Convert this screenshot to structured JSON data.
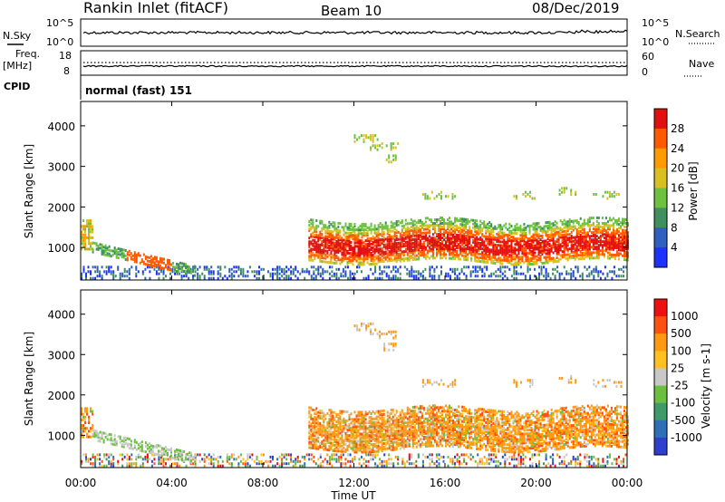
{
  "header": {
    "station": "Rankin Inlet (fitACF)",
    "beam": "Beam 10",
    "date": "08/Dec/2019"
  },
  "top_panels": {
    "nsky_label": "N.Sky",
    "nsky_ticks": [
      "10^5",
      "10^0"
    ],
    "nsearch_label": "N.Search",
    "nsearch_ticks": [
      "10^5",
      "10^0"
    ],
    "freq_label": "Freq.",
    "freq_unit": "[MHz]",
    "freq_ticks": [
      "18",
      "8"
    ],
    "nave_label": "Nave",
    "nave_ticks": [
      "60",
      "0"
    ],
    "cpid_label": "CPID",
    "cpid_value": "normal (fast) 151"
  },
  "colors": {
    "power": [
      "#1e32ff",
      "#2f5fbf",
      "#3f8f5f",
      "#6ec040",
      "#d8c020",
      "#ff9a00",
      "#ff5a00",
      "#e01010"
    ],
    "velocity": [
      "#2e3fd0",
      "#2f6fb8",
      "#3f9a6a",
      "#6cc040",
      "#c8c8c8",
      "#ffc020",
      "#ff9a10",
      "#ff5010",
      "#ee1010"
    ]
  },
  "chart_data": [
    {
      "type": "heatmap",
      "ylabel": "Slant Range [km]",
      "yticks": [
        "1000",
        "2000",
        "3000",
        "4000"
      ],
      "ylim": [
        200,
        4600
      ],
      "colorbar": {
        "label": "Power [dB]",
        "ticks": [
          "4",
          "8",
          "12",
          "16",
          "20",
          "24",
          "28"
        ],
        "range": [
          0,
          32
        ]
      }
    },
    {
      "type": "heatmap",
      "ylabel": "Slant Range [km]",
      "yticks": [
        "1000",
        "2000",
        "3000",
        "4000"
      ],
      "ylim": [
        200,
        4600
      ],
      "xlabel": "Time UT",
      "xticks": [
        "00:00",
        "04:00",
        "08:00",
        "12:00",
        "16:00",
        "20:00",
        "00:00"
      ],
      "colorbar": {
        "label": "Velocity [m s-1]",
        "ticks": [
          "1000",
          "500",
          "100",
          "25",
          "-25",
          "-100",
          "-500",
          "-1000"
        ]
      }
    }
  ]
}
